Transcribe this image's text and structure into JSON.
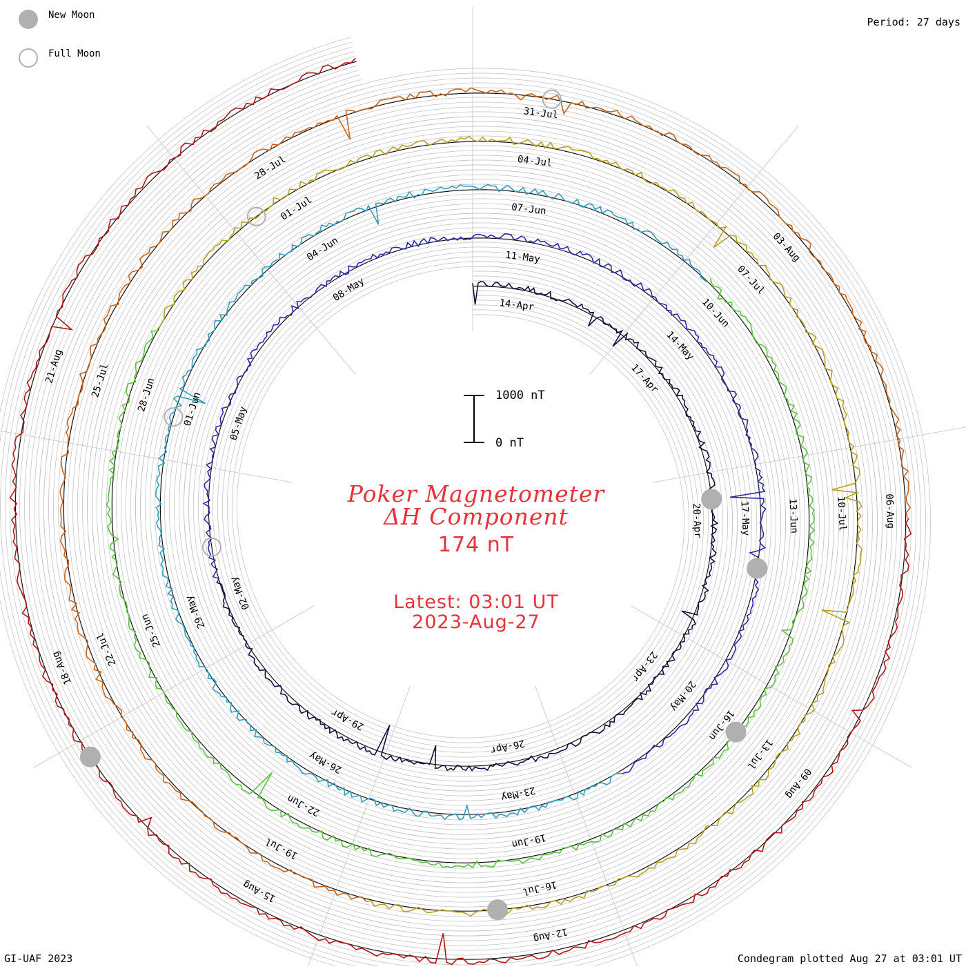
{
  "legend": {
    "new_moon": "New Moon",
    "full_moon": "Full Moon"
  },
  "period": "Period: 27 days",
  "scale": {
    "top": "1000 nT",
    "bottom": "0 nT"
  },
  "title": {
    "line1": "Poker Magnetometer",
    "line2": "ΔH Component"
  },
  "current_value": "174 nT",
  "latest": {
    "time": "Latest: 03:01 UT",
    "date": "2023-Aug-27"
  },
  "footer": {
    "left": "GI-UAF 2023",
    "right": "Condegram plotted Aug 27 at 03:01 UT"
  },
  "colors": {
    "text_red": "#e8323a",
    "grid": "#c4c4c4",
    "moon": "#b0b0b0",
    "baseline": "#000000",
    "series": [
      "#151040",
      "#2a2aa8",
      "#2f9cc0",
      "#5cc040",
      "#b8a020",
      "#c8641c",
      "#b01818"
    ]
  },
  "chart_data": {
    "type": "condegram",
    "title": "Poker Magnetometer ΔH Component",
    "period_days": 27,
    "units": "nT",
    "start_angle_label": "14-Apr",
    "rings": [
      {
        "name": "14-Apr",
        "labels": [
          "14-Apr",
          "17-Apr",
          "20-Apr",
          "23-Apr",
          "26-Apr",
          "29-Apr",
          "02-May",
          "05-May",
          "08-May"
        ]
      },
      {
        "name": "11-May",
        "labels": [
          "11-May",
          "14-May",
          "17-May",
          "20-May",
          "23-May",
          "26-May",
          "29-May",
          "01-Jun",
          "04-Jun"
        ]
      },
      {
        "name": "07-Jun",
        "labels": [
          "07-Jun",
          "10-Jun",
          "13-Jun",
          "16-Jun",
          "19-Jun",
          "22-Jun",
          "25-Jun",
          "28-Jun",
          "01-Jul"
        ]
      },
      {
        "name": "04-Jul",
        "labels": [
          "04-Jul",
          "07-Jul",
          "10-Jul",
          "13-Jul",
          "16-Jul",
          "19-Jul",
          "22-Jul",
          "25-Jul",
          "28-Jul"
        ]
      },
      {
        "name": "31-Jul",
        "labels": [
          "31-Jul",
          "03-Aug",
          "06-Aug",
          "09-Aug",
          "12-Aug",
          "15-Aug",
          "18-Aug",
          "21-Aug"
        ]
      }
    ],
    "new_moons": [
      "20-Apr",
      "19-May",
      "18-Jun",
      "17-Jul",
      "16-Aug"
    ],
    "full_moons": [
      "05-May",
      "03-Jun",
      "03-Jul",
      "01-Aug"
    ],
    "latest_value_nT": 174,
    "scale_bar": {
      "min": 0,
      "max": 1000
    }
  }
}
